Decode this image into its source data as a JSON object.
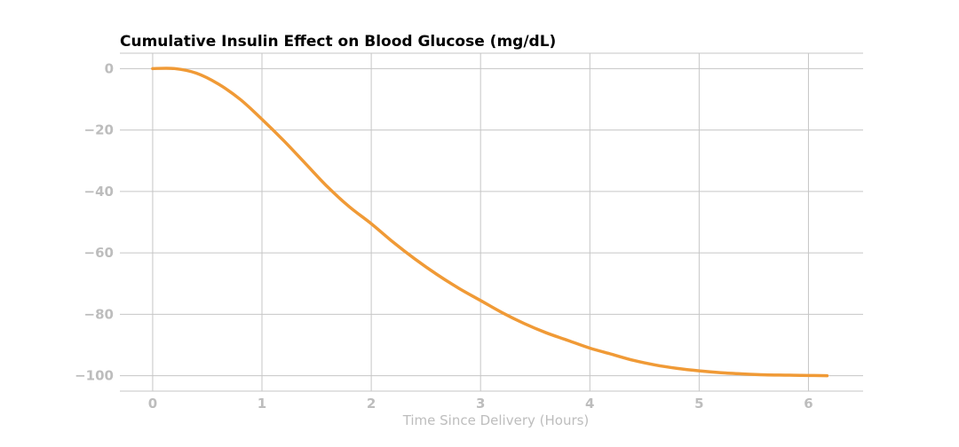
{
  "chart_data": {
    "type": "line",
    "title": "Cumulative Insulin Effect on Blood Glucose (mg/dL)",
    "xlabel": "Time Since Delivery (Hours)",
    "ylabel": "",
    "xlim": [
      -0.3,
      6.5
    ],
    "ylim": [
      -105,
      5
    ],
    "x_ticks": [
      0,
      1,
      2,
      3,
      4,
      5,
      6
    ],
    "x_tick_labels": [
      "0",
      "1",
      "2",
      "3",
      "4",
      "5",
      "6"
    ],
    "y_ticks": [
      0,
      -20,
      -40,
      -60,
      -80,
      -100
    ],
    "y_tick_labels": [
      "0",
      "−20",
      "−40",
      "−60",
      "−80",
      "−100"
    ],
    "grid": true,
    "series": [
      {
        "color": "#f09a36",
        "x": [
          0,
          0.2,
          0.4,
          0.6,
          0.8,
          1.0,
          1.2,
          1.4,
          1.6,
          1.8,
          2.0,
          2.2,
          2.4,
          2.6,
          2.8,
          3.0,
          3.2,
          3.4,
          3.6,
          3.8,
          4.0,
          4.2,
          4.4,
          4.6,
          4.8,
          5.0,
          5.2,
          5.4,
          5.6,
          5.8,
          6.0,
          6.17
        ],
        "y": [
          0,
          0,
          -1.5,
          -5.0,
          -10.0,
          -16.5,
          -23.5,
          -31.0,
          -38.5,
          -45.0,
          -50.5,
          -56.5,
          -62.0,
          -67.0,
          -71.5,
          -75.5,
          -79.5,
          -83.0,
          -86.0,
          -88.5,
          -91.0,
          -93.0,
          -95.0,
          -96.5,
          -97.6,
          -98.4,
          -99.0,
          -99.4,
          -99.7,
          -99.8,
          -99.9,
          -100.0
        ]
      }
    ]
  }
}
